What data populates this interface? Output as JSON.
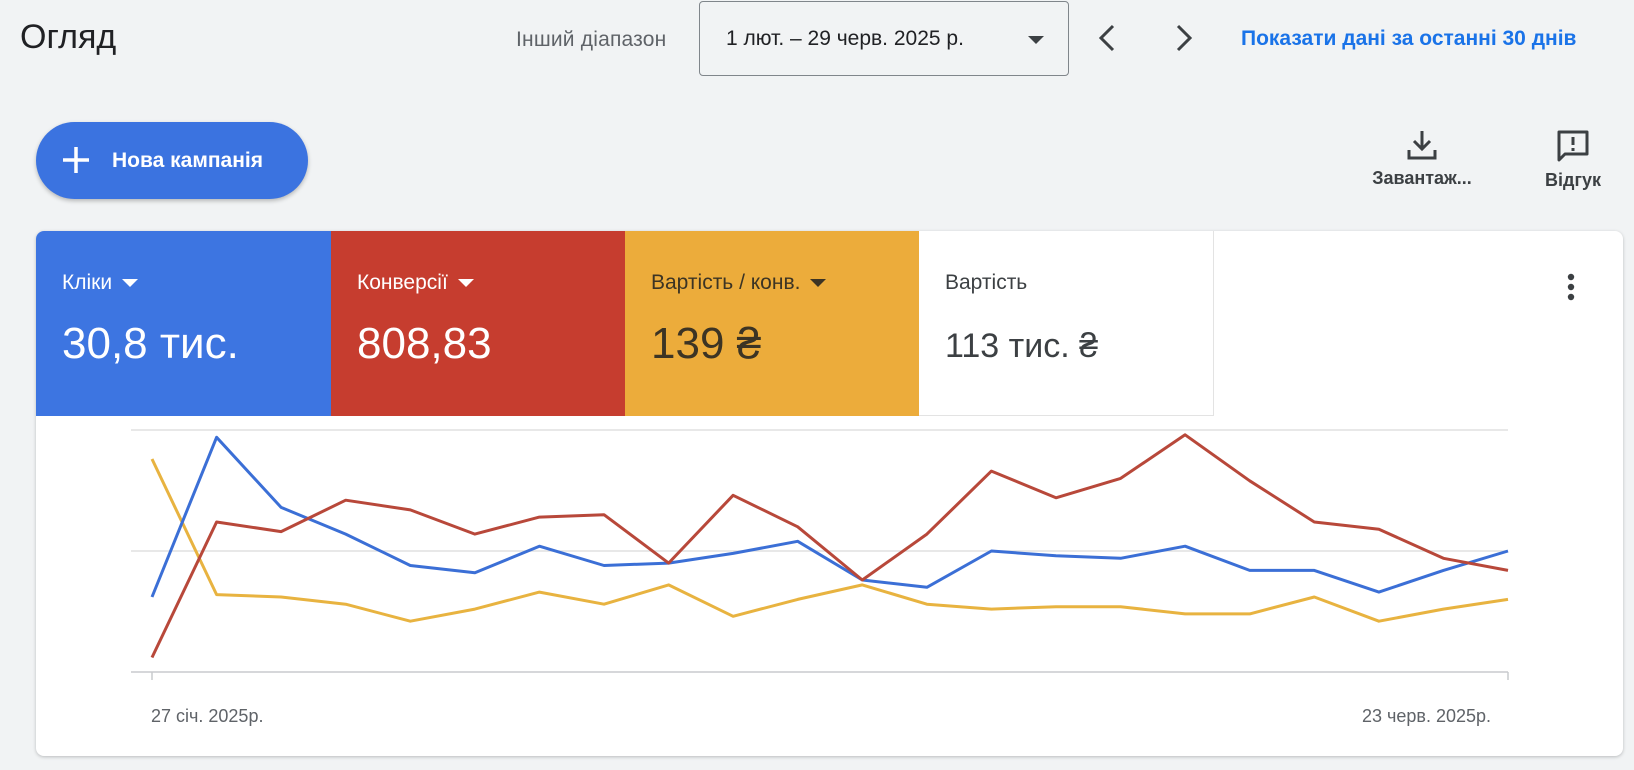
{
  "header": {
    "title": "Огляд",
    "range_label": "Інший діапазон",
    "date_range": "1 лют. – 29 черв. 2025 р.",
    "prev_icon": "chevron-left-icon",
    "next_icon": "chevron-right-icon",
    "show_last_link": "Показати дані за останні 30 днів"
  },
  "actions": {
    "new_campaign": "Нова кампанія",
    "download": "Завантаж...",
    "feedback": "Відгук"
  },
  "metrics": [
    {
      "label": "Кліки",
      "value": "30,8 тис.",
      "color": "#3d75e1"
    },
    {
      "label": "Конверсії",
      "value": "808,83",
      "color": "#c63d2f"
    },
    {
      "label": "Вартість / конв.",
      "value": "139 ₴",
      "color": "#ecac3b"
    },
    {
      "label": "Вартість",
      "value": "113 тис. ₴",
      "color": "#ffffff"
    }
  ],
  "chart_data": {
    "type": "line",
    "x_start_label": "27 січ. 2025р.",
    "x_end_label": "23 черв. 2025р.",
    "grid": true,
    "series": [
      {
        "name": "Кліки",
        "color": "#3b6fd6",
        "values": [
          0.31,
          0.97,
          0.68,
          0.57,
          0.44,
          0.41,
          0.52,
          0.44,
          0.45,
          0.49,
          0.54,
          0.38,
          0.35,
          0.5,
          0.48,
          0.47,
          0.52,
          0.42,
          0.42,
          0.33,
          0.42,
          0.5
        ]
      },
      {
        "name": "Конверсії",
        "color": "#b8483a",
        "values": [
          0.06,
          0.62,
          0.58,
          0.71,
          0.67,
          0.57,
          0.64,
          0.65,
          0.45,
          0.73,
          0.6,
          0.38,
          0.57,
          0.83,
          0.72,
          0.8,
          0.98,
          0.79,
          0.62,
          0.59,
          0.47,
          0.42
        ]
      },
      {
        "name": "Вартість / конв.",
        "color": "#e8b340",
        "values": [
          0.88,
          0.32,
          0.31,
          0.28,
          0.21,
          0.26,
          0.33,
          0.28,
          0.36,
          0.23,
          0.3,
          0.36,
          0.28,
          0.26,
          0.27,
          0.27,
          0.24,
          0.24,
          0.31,
          0.21,
          0.26,
          0.3
        ]
      }
    ]
  }
}
